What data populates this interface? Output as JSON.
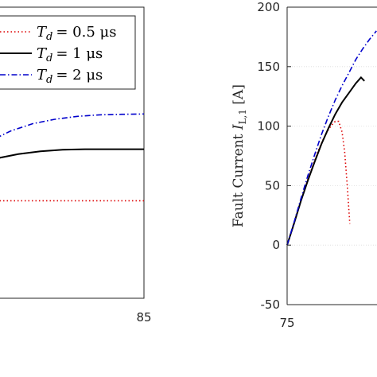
{
  "chart_data": [
    {
      "type": "line",
      "title": "",
      "xlabel": "",
      "ylabel": "",
      "x_ticks": [
        "85"
      ],
      "legend": {
        "placement": "top-right",
        "entries": [
          {
            "var": "T",
            "sub": "d",
            "value": "= 0.5 μs"
          },
          {
            "var": "T",
            "sub": "d",
            "value": "= 1 μs"
          },
          {
            "var": "T",
            "sub": "d",
            "value": "= 2 μs"
          }
        ]
      },
      "grid": false,
      "series": [
        {
          "color": "#dd0000",
          "style": "dotted",
          "x": [
            75,
            85
          ],
          "y": [
            0.335,
            0.335
          ]
        },
        {
          "color": "#000000",
          "style": "solid",
          "x": [
            75,
            76.5,
            78,
            79.5,
            81,
            83,
            85
          ],
          "y": [
            0.48,
            0.495,
            0.505,
            0.51,
            0.512,
            0.512,
            0.512
          ]
        },
        {
          "color": "#0000cc",
          "style": "dashdot",
          "x": [
            75,
            76,
            77.5,
            79,
            80.5,
            82,
            83.5,
            85
          ],
          "y": [
            0.55,
            0.575,
            0.6,
            0.615,
            0.625,
            0.63,
            0.632,
            0.633
          ]
        }
      ]
    },
    {
      "type": "line",
      "title": "",
      "xlabel": "",
      "ylabel": "Fault Current I_{L,1} [A]",
      "ylabel_text": "Fault Current ",
      "ylabel_var": "I",
      "ylabel_sub": "L,1",
      "ylabel_unit": " [A]",
      "ylim": [
        -50,
        200
      ],
      "y_ticks": [
        "-50",
        "0",
        "50",
        "100",
        "150",
        "200"
      ],
      "x_ticks": [
        "75"
      ],
      "grid": true,
      "series": [
        {
          "color": "#dd0000",
          "style": "dotted",
          "x": [
            75,
            75.3,
            75.6,
            75.9,
            76.2,
            76.5,
            76.8,
            77.1,
            77.4,
            77.6,
            77.8,
            78.0,
            78.2,
            78.35,
            78.5,
            78.65
          ],
          "y": [
            0,
            14,
            28,
            42,
            55,
            67,
            79,
            89,
            97,
            101,
            104,
            104,
            95,
            78,
            50,
            18
          ]
        },
        {
          "color": "#000000",
          "style": "solid",
          "x": [
            75,
            75.4,
            75.8,
            76.2,
            76.6,
            77.0,
            77.4,
            77.8,
            78.2,
            78.6,
            79.0,
            79.3,
            79.5
          ],
          "y": [
            0,
            18,
            37,
            54,
            70,
            85,
            98,
            110,
            120,
            128,
            136,
            141,
            138
          ]
        },
        {
          "color": "#0000cc",
          "style": "dashdot",
          "x": [
            75,
            75.4,
            75.8,
            76.2,
            76.6,
            77.0,
            77.4,
            77.8,
            78.2,
            78.6,
            79.0,
            79.4,
            79.8,
            80.2
          ],
          "y": [
            0,
            19,
            39,
            58,
            76,
            93,
            108,
            122,
            134,
            145,
            156,
            165,
            173,
            180
          ]
        }
      ]
    }
  ]
}
